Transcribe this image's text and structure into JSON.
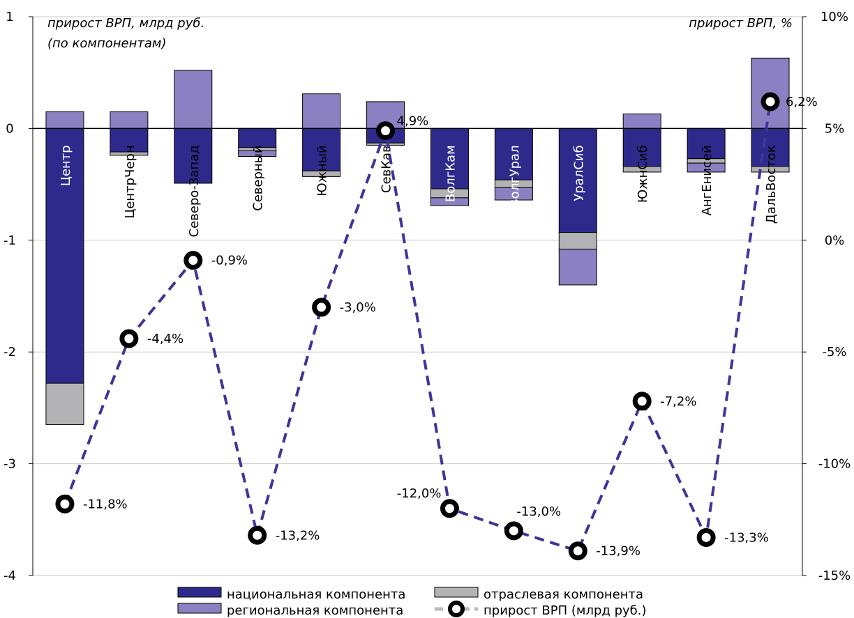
{
  "chart_data": {
    "type": "bar",
    "stacked": true,
    "left_axis_note": [
      "прирост ВРП, млрд руб.",
      "(по компонентам)"
    ],
    "right_axis_note": "прирост ВРП, %",
    "categories": [
      "Центр",
      "ЦентрЧерн",
      "Северо-Запад",
      "Северный",
      "Южный",
      "СевКав",
      "ВолгКам",
      "ВолгУрал",
      "УралСиб",
      "ЮжнСиб",
      "АнгЕнисей",
      "ДальВосток"
    ],
    "y_left": {
      "ylim": [
        -4,
        1
      ],
      "ticks": [
        "1",
        "0",
        "-1",
        "-2",
        "-3",
        "-4"
      ],
      "tick_values": [
        1,
        0,
        -1,
        -2,
        -3,
        -4
      ]
    },
    "y_right": {
      "ylim": [
        -15,
        10
      ],
      "ticks": [
        "10%",
        "5%",
        "0%",
        "-5%",
        "-10%",
        "-15%"
      ],
      "tick_values": [
        10,
        5,
        0,
        -5,
        -10,
        -15
      ]
    },
    "series": [
      {
        "name": "национальная компонента",
        "color": "#2e2a8c",
        "values": [
          -2.28,
          -0.21,
          -0.49,
          -0.17,
          -0.38,
          -0.13,
          -0.54,
          -0.46,
          -0.93,
          -0.34,
          -0.27,
          -0.34
        ]
      },
      {
        "name": "отраслевая компонента",
        "color": "#b3b3b5",
        "values": [
          -0.37,
          -0.03,
          0.0,
          -0.03,
          -0.05,
          -0.02,
          -0.08,
          -0.07,
          -0.15,
          -0.05,
          -0.04,
          -0.05
        ]
      },
      {
        "name": "региональная компонента",
        "color": "#8a80c2",
        "values": [
          0.15,
          0.15,
          0.52,
          -0.05,
          0.31,
          0.24,
          -0.07,
          -0.11,
          -0.32,
          0.13,
          -0.08,
          0.63
        ]
      }
    ],
    "line": {
      "name": "прирост ВРП (млрд руб.)",
      "color": "#3f3598",
      "values": [
        -11.8,
        -4.4,
        -0.9,
        -13.2,
        -3.0,
        4.9,
        -12.0,
        -13.0,
        -13.9,
        -7.2,
        -13.3,
        6.2
      ],
      "labels": [
        "-11,8%",
        "-4,4%",
        "-0,9%",
        "-13,2%",
        "-3,0%",
        "4,9%",
        "-12,0%",
        "-13,0%",
        "-13,9%",
        "-7,2%",
        "-13,3%",
        "6,2%"
      ]
    },
    "grid": true,
    "legend": "bottom"
  }
}
